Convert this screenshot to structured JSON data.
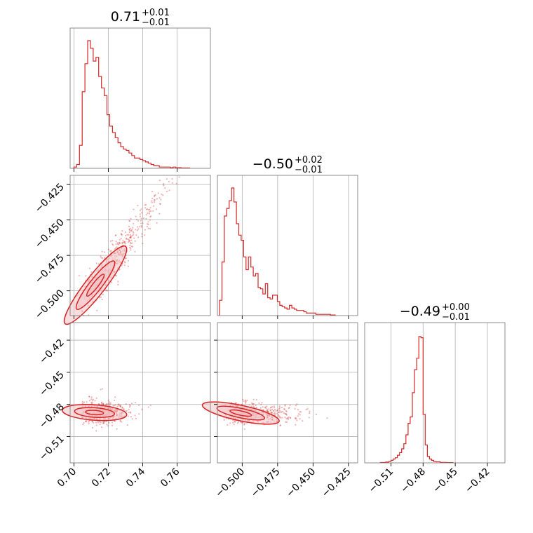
{
  "chart_data": {
    "type": "corner",
    "color": "#d62728",
    "fill_color": "#f3c3c4",
    "grid": true,
    "params": [
      {
        "median": 0.71,
        "err_plus": 0.01,
        "err_minus": 0.01,
        "title_value": "0.71",
        "title_plus": "+0.01",
        "title_minus": "−0.01",
        "range": [
          0.6978,
          0.7793
        ],
        "ticks": [
          {
            "value": 0.7,
            "label": "0.70"
          },
          {
            "value": 0.72,
            "label": "0.72"
          },
          {
            "value": 0.74,
            "label": "0.74"
          },
          {
            "value": 0.76,
            "label": "0.76"
          }
        ]
      },
      {
        "median": -0.5,
        "err_plus": 0.02,
        "err_minus": 0.01,
        "title_value": "−0.50",
        "title_plus": "+0.02",
        "title_minus": "−0.01",
        "range": [
          -0.5175,
          -0.4185
        ],
        "ticks": [
          {
            "value": -0.5,
            "label": "−0.500"
          },
          {
            "value": -0.475,
            "label": "−0.475"
          },
          {
            "value": -0.45,
            "label": "−0.450"
          },
          {
            "value": -0.425,
            "label": "−0.425"
          }
        ]
      },
      {
        "median": -0.49,
        "err_plus": 0.0,
        "err_minus": 0.01,
        "title_value": "−0.49",
        "title_plus": "+0.00",
        "title_minus": "−0.01",
        "range": [
          -0.5345,
          -0.4036
        ],
        "ticks": [
          {
            "value": -0.51,
            "label": "−0.51"
          },
          {
            "value": -0.48,
            "label": "−0.48"
          },
          {
            "value": -0.45,
            "label": "−0.45"
          },
          {
            "value": -0.42,
            "label": "−0.42"
          }
        ]
      }
    ],
    "histograms": [
      {
        "param": 0,
        "bins": [
          [
            0.7,
            0.01
          ],
          [
            0.7016,
            0.03
          ],
          [
            0.7032,
            0.18
          ],
          [
            0.7048,
            0.6
          ],
          [
            0.7064,
            0.82
          ],
          [
            0.708,
            1.0
          ],
          [
            0.7096,
            0.94
          ],
          [
            0.7112,
            0.84
          ],
          [
            0.7128,
            0.87
          ],
          [
            0.7144,
            0.72
          ],
          [
            0.716,
            0.63
          ],
          [
            0.7176,
            0.57
          ],
          [
            0.7192,
            0.42
          ],
          [
            0.7208,
            0.33
          ],
          [
            0.7224,
            0.28
          ],
          [
            0.724,
            0.24
          ],
          [
            0.7256,
            0.2
          ],
          [
            0.7272,
            0.17
          ],
          [
            0.7288,
            0.15
          ],
          [
            0.7304,
            0.14
          ],
          [
            0.732,
            0.12
          ],
          [
            0.7336,
            0.1
          ],
          [
            0.7352,
            0.08
          ],
          [
            0.7368,
            0.08
          ],
          [
            0.7384,
            0.07
          ],
          [
            0.74,
            0.06
          ],
          [
            0.7416,
            0.05
          ],
          [
            0.7432,
            0.04
          ],
          [
            0.7448,
            0.03
          ],
          [
            0.7464,
            0.02
          ],
          [
            0.748,
            0.02
          ],
          [
            0.7496,
            0.01
          ],
          [
            0.7512,
            0.01
          ],
          [
            0.7528,
            0.01
          ],
          [
            0.7544,
            0.01
          ],
          [
            0.756,
            0.005
          ],
          [
            0.7576,
            0.01
          ],
          [
            0.7592,
            0.005
          ],
          [
            0.7608,
            0.005
          ],
          [
            0.7624,
            0.003
          ],
          [
            0.764,
            0.003
          ],
          [
            0.7656,
            0.003
          ]
        ]
      },
      {
        "param": 1,
        "bins": [
          [
            -0.516,
            0.12
          ],
          [
            -0.5143,
            0.42
          ],
          [
            -0.5126,
            0.78
          ],
          [
            -0.5109,
            0.84
          ],
          [
            -0.5092,
            0.9
          ],
          [
            -0.5075,
            1.0
          ],
          [
            -0.5058,
            0.89
          ],
          [
            -0.5041,
            0.72
          ],
          [
            -0.5024,
            0.63
          ],
          [
            -0.5007,
            0.59
          ],
          [
            -0.499,
            0.46
          ],
          [
            -0.4973,
            0.36
          ],
          [
            -0.4956,
            0.46
          ],
          [
            -0.4939,
            0.38
          ],
          [
            -0.4922,
            0.31
          ],
          [
            -0.4905,
            0.33
          ],
          [
            -0.4888,
            0.22
          ],
          [
            -0.4871,
            0.21
          ],
          [
            -0.4854,
            0.17
          ],
          [
            -0.4837,
            0.25
          ],
          [
            -0.482,
            0.14
          ],
          [
            -0.4803,
            0.13
          ],
          [
            -0.4786,
            0.16
          ],
          [
            -0.4769,
            0.16
          ],
          [
            -0.4752,
            0.11
          ],
          [
            -0.4735,
            0.08
          ],
          [
            -0.4718,
            0.07
          ],
          [
            -0.4701,
            0.06
          ],
          [
            -0.4684,
            0.05
          ],
          [
            -0.4667,
            0.08
          ],
          [
            -0.465,
            0.06
          ],
          [
            -0.4633,
            0.05
          ],
          [
            -0.4616,
            0.04
          ],
          [
            -0.4599,
            0.04
          ],
          [
            -0.4582,
            0.04
          ],
          [
            -0.4565,
            0.03
          ],
          [
            -0.4548,
            0.02
          ],
          [
            -0.4531,
            0.02
          ],
          [
            -0.4514,
            0.02
          ],
          [
            -0.4497,
            0.02
          ],
          [
            -0.448,
            0.01
          ],
          [
            -0.4463,
            0.01
          ],
          [
            -0.4446,
            0.01
          ],
          [
            -0.4429,
            0.01
          ],
          [
            -0.4412,
            0.01
          ],
          [
            -0.4395,
            0.01
          ],
          [
            -0.4378,
            0.005
          ],
          [
            -0.4361,
            0.005
          ]
        ]
      },
      {
        "param": 2,
        "bins": [
          [
            -0.52,
            0.003
          ],
          [
            -0.515,
            0.006
          ],
          [
            -0.512,
            0.01
          ],
          [
            -0.51,
            0.02
          ],
          [
            -0.508,
            0.03
          ],
          [
            -0.506,
            0.04
          ],
          [
            -0.504,
            0.06
          ],
          [
            -0.502,
            0.08
          ],
          [
            -0.5,
            0.11
          ],
          [
            -0.498,
            0.15
          ],
          [
            -0.496,
            0.22
          ],
          [
            -0.494,
            0.31
          ],
          [
            -0.492,
            0.36
          ],
          [
            -0.49,
            0.55
          ],
          [
            -0.488,
            0.73
          ],
          [
            -0.486,
            0.82
          ],
          [
            -0.484,
            0.99
          ],
          [
            -0.482,
            0.98
          ],
          [
            -0.48,
            0.38
          ],
          [
            -0.478,
            0.14
          ],
          [
            -0.476,
            0.05
          ],
          [
            -0.474,
            0.03
          ],
          [
            -0.472,
            0.02
          ],
          [
            -0.47,
            0.01
          ],
          [
            -0.468,
            0.008
          ],
          [
            -0.464,
            0.004
          ],
          [
            -0.458,
            0.002
          ]
        ]
      }
    ]
  }
}
